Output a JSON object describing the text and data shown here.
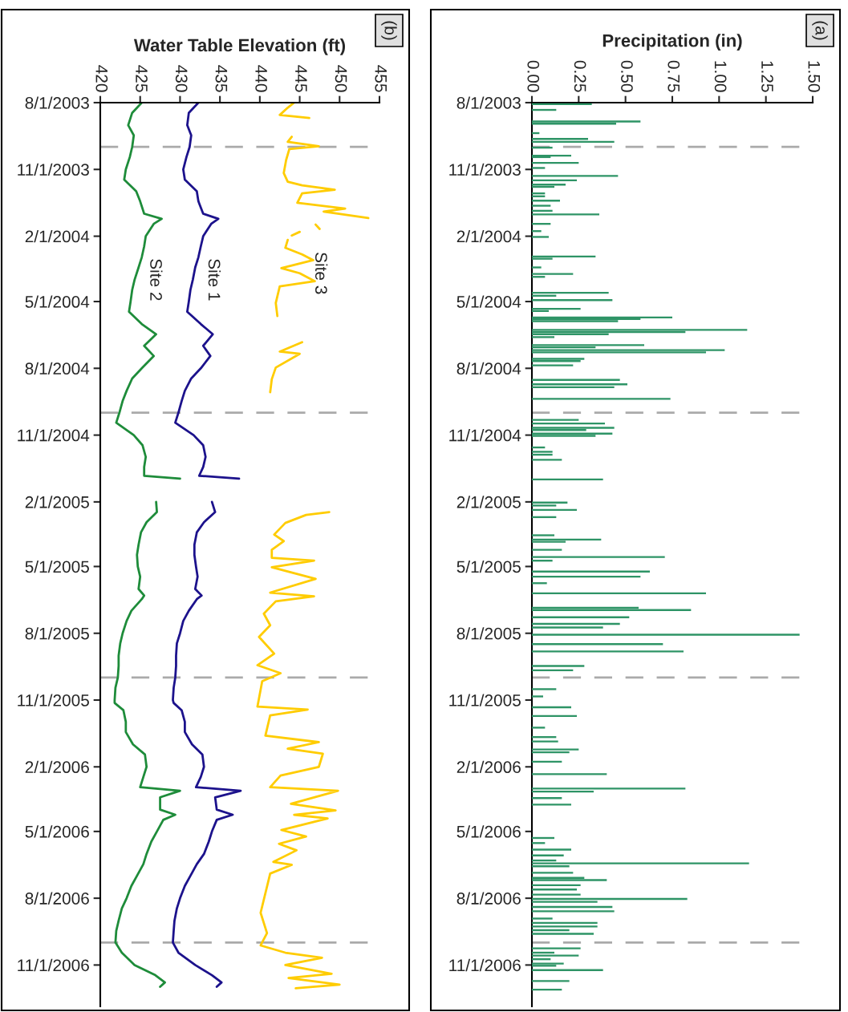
{
  "chart_data": [
    {
      "type": "line",
      "orientation": "horizontal",
      "xlabel": "Water Table Elevation (ft)",
      "annotations": [
        "(b)"
      ],
      "xlim": [
        420,
        455
      ],
      "xticks": [
        420,
        425,
        430,
        435,
        440,
        445,
        450,
        455
      ],
      "ylim": [
        "2006-12-28",
        "2003-08-01"
      ],
      "yticks": [
        {
          "value": "2003-08-01",
          "label": "8/1/2003"
        },
        {
          "value": "2003-11-01",
          "label": "11/1/2003"
        },
        {
          "value": "2004-02-01",
          "label": "2/1/2004"
        },
        {
          "value": "2004-05-01",
          "label": "5/1/2004"
        },
        {
          "value": "2004-08-01",
          "label": "8/1/2004"
        },
        {
          "value": "2004-11-01",
          "label": "11/1/2004"
        },
        {
          "value": "2005-02-01",
          "label": "2/1/2005"
        },
        {
          "value": "2005-05-01",
          "label": "5/1/2005"
        },
        {
          "value": "2005-08-01",
          "label": "8/1/2005"
        },
        {
          "value": "2005-11-01",
          "label": "11/1/2005"
        },
        {
          "value": "2006-02-01",
          "label": "2/1/2006"
        },
        {
          "value": "2006-05-01",
          "label": "5/1/2006"
        },
        {
          "value": "2006-08-01",
          "label": "8/1/2006"
        },
        {
          "value": "2006-11-01",
          "label": "11/1/2006"
        }
      ],
      "ref_lines": [
        {
          "axis": "y",
          "value": "2003-10-01",
          "color": "#aaaaaa",
          "line_style": "dashed"
        },
        {
          "axis": "y",
          "value": "2004-10-01",
          "color": "#aaaaaa",
          "line_style": "dashed"
        },
        {
          "axis": "y",
          "value": "2005-10-01",
          "color": "#aaaaaa",
          "line_style": "dashed"
        },
        {
          "axis": "y",
          "value": "2006-10-01",
          "color": "#aaaaaa",
          "line_style": "dashed"
        }
      ],
      "grid": false,
      "legend": false,
      "line_style": "solid",
      "series": [
        {
          "name": "Site 2",
          "color": "#1e8c3a",
          "x": [
            "2003-08-01",
            "2003-08-15",
            "2003-09-01",
            "2003-09-15",
            "2003-10-01",
            "2003-10-15",
            "2003-11-01",
            "2003-11-15",
            "2003-12-01",
            "2003-12-15",
            "2004-01-01",
            "2004-01-08",
            "2004-01-15",
            "2004-02-01",
            "2004-02-15",
            "2004-03-01",
            "2004-03-15",
            "2004-04-01",
            "2004-04-15",
            "2004-05-01",
            "2004-05-15",
            "2004-06-01",
            "2004-06-15",
            "2004-07-01",
            "2004-07-15",
            "2004-08-01",
            "2004-08-15",
            "2004-09-01",
            "2004-09-15",
            "2004-10-01",
            "2004-10-15",
            "2004-11-01",
            "2004-11-15",
            "2004-12-01",
            "2004-12-15",
            "2004-12-27",
            "2004-12-31",
            "2005-01-15",
            "2005-02-01",
            "2005-02-15",
            "2005-03-01",
            "2005-03-15",
            "2005-04-01",
            "2005-04-15",
            "2005-05-01",
            "2005-05-15",
            "2005-06-01",
            "2005-06-10",
            "2005-06-15",
            "2005-07-01",
            "2005-07-15",
            "2005-08-01",
            "2005-08-15",
            "2005-09-01",
            "2005-09-15",
            "2005-10-01",
            "2005-10-15",
            "2005-11-01",
            "2005-11-05",
            "2005-11-15",
            "2005-12-01",
            "2005-12-15",
            "2006-01-01",
            "2006-01-15",
            "2006-02-01",
            "2006-02-15",
            "2006-03-01",
            "2006-03-06",
            "2006-03-15",
            "2006-04-01",
            "2006-04-08",
            "2006-04-15",
            "2006-05-01",
            "2006-05-15",
            "2006-06-01",
            "2006-06-15",
            "2006-07-01",
            "2006-07-15",
            "2006-08-01",
            "2006-08-15",
            "2006-09-01",
            "2006-09-15",
            "2006-10-01",
            "2006-10-15",
            "2006-11-01",
            "2006-11-15",
            "2006-11-25",
            "2006-12-01"
          ],
          "values": [
            425.2,
            424.0,
            423.5,
            424.2,
            424.0,
            423.7,
            423.2,
            423.0,
            424.5,
            425.0,
            425.5,
            427.7,
            426.7,
            425.7,
            425.5,
            425.2,
            424.8,
            424.3,
            424.0,
            423.8,
            423.6,
            425.2,
            427.0,
            425.5,
            426.7,
            425.2,
            424.0,
            423.3,
            422.8,
            422.4,
            422.0,
            424.2,
            425.3,
            425.7,
            425.5,
            425.5,
            430.0,
            null,
            427.0,
            427.1,
            425.8,
            425.1,
            424.8,
            424.6,
            424.7,
            425.0,
            424.8,
            425.5,
            425.2,
            423.9,
            423.3,
            422.8,
            422.5,
            422.3,
            422.3,
            422.2,
            421.9,
            421.8,
            421.8,
            422.9,
            423.2,
            423.2,
            424.1,
            425.6,
            425.8,
            425.4,
            425.0,
            430.0,
            427.5,
            427.5,
            429.4,
            427.9,
            427.1,
            426.4,
            425.8,
            425.4,
            424.6,
            423.9,
            423.3,
            422.7,
            422.3,
            422.0,
            421.9,
            422.7,
            424.3,
            426.9,
            428.1,
            427.5
          ]
        },
        {
          "name": "Site 1",
          "color": "#1c128c",
          "x": [
            "2003-08-01",
            "2003-08-15",
            "2003-09-01",
            "2003-09-15",
            "2003-10-01",
            "2003-10-15",
            "2003-11-01",
            "2003-11-15",
            "2003-12-01",
            "2003-12-15",
            "2004-01-01",
            "2004-01-08",
            "2004-01-15",
            "2004-02-01",
            "2004-02-15",
            "2004-03-01",
            "2004-03-15",
            "2004-04-01",
            "2004-04-15",
            "2004-05-01",
            "2004-05-15",
            "2004-06-01",
            "2004-06-15",
            "2004-07-01",
            "2004-07-15",
            "2004-08-01",
            "2004-08-15",
            "2004-09-01",
            "2004-09-15",
            "2004-10-01",
            "2004-10-15",
            "2004-11-01",
            "2004-11-15",
            "2004-12-01",
            "2004-12-15",
            "2004-12-27",
            "2004-12-31",
            "2005-01-15",
            "2005-02-01",
            "2005-02-15",
            "2005-03-01",
            "2005-03-15",
            "2005-04-01",
            "2005-04-15",
            "2005-05-01",
            "2005-05-15",
            "2005-06-01",
            "2005-06-10",
            "2005-06-15",
            "2005-07-01",
            "2005-07-15",
            "2005-08-01",
            "2005-08-15",
            "2005-09-01",
            "2005-09-15",
            "2005-10-01",
            "2005-10-15",
            "2005-11-01",
            "2005-11-05",
            "2005-11-15",
            "2005-12-01",
            "2005-12-15",
            "2006-01-01",
            "2006-01-15",
            "2006-02-01",
            "2006-02-15",
            "2006-03-01",
            "2006-03-06",
            "2006-03-15",
            "2006-04-01",
            "2006-04-08",
            "2006-04-15",
            "2006-05-01",
            "2006-05-15",
            "2006-06-01",
            "2006-06-15",
            "2006-07-01",
            "2006-07-15",
            "2006-08-01",
            "2006-08-15",
            "2006-09-01",
            "2006-09-15",
            "2006-10-01",
            "2006-10-15",
            "2006-11-01",
            "2006-11-15",
            "2006-11-25",
            "2006-12-01"
          ],
          "values": [
            432.3,
            431.1,
            430.9,
            431.4,
            431.2,
            430.8,
            430.4,
            430.6,
            432.1,
            432.3,
            432.9,
            434.8,
            433.9,
            432.9,
            432.6,
            432.3,
            431.9,
            431.6,
            431.3,
            431.1,
            430.9,
            432.6,
            434.1,
            432.9,
            433.8,
            432.6,
            431.4,
            430.6,
            430.2,
            429.8,
            429.4,
            431.7,
            432.9,
            433.2,
            432.9,
            432.4,
            437.4,
            null,
            434.0,
            434.4,
            433.0,
            432.1,
            431.8,
            431.8,
            432.0,
            432.2,
            431.9,
            432.7,
            432.1,
            431.1,
            430.4,
            430.0,
            429.6,
            429.5,
            429.5,
            429.4,
            429.2,
            429.1,
            429.2,
            430.2,
            430.6,
            430.6,
            431.5,
            432.8,
            433.0,
            432.6,
            432.0,
            437.6,
            434.4,
            434.6,
            436.6,
            434.6,
            434.0,
            433.6,
            433.0,
            432.1,
            431.3,
            430.6,
            430.0,
            429.6,
            429.3,
            429.2,
            429.1,
            429.8,
            431.9,
            434.0,
            435.2,
            434.6
          ]
        },
        {
          "name": "Site 3",
          "color": "#ffcc00",
          "x": [
            "2003-08-01",
            "2003-08-08",
            "2003-08-18",
            "2003-08-22",
            "2003-09-01",
            "2003-09-17",
            "2003-09-24",
            "2003-09-30",
            "2003-10-04",
            "2003-10-19",
            "2003-11-06",
            "2003-11-18",
            "2003-11-23",
            "2003-11-29",
            "2003-12-04",
            "2003-12-17",
            "2003-12-25",
            "2003-12-29",
            "2004-01-07",
            "2004-01-12",
            "2004-01-16",
            "2004-01-22",
            "2004-01-24",
            "2004-01-26",
            "2004-01-31",
            "2004-02-03",
            "2004-02-06",
            "2004-02-17",
            "2004-02-26",
            "2004-03-05",
            "2004-03-16",
            "2004-03-23",
            "2004-04-03",
            "2004-04-10",
            "2004-05-03",
            "2004-05-21",
            "2004-06-08",
            "2004-06-26",
            "2004-07-09",
            "2004-07-12",
            "2004-07-31",
            "2004-08-16",
            "2004-09-03",
            "2004-12-01",
            "2005-02-15",
            "2005-02-19",
            "2005-03-02",
            "2005-03-18",
            "2005-03-27",
            "2005-04-08",
            "2005-04-19",
            "2005-04-23",
            "2005-05-02",
            "2005-05-18",
            "2005-06-06",
            "2005-06-11",
            "2005-06-18",
            "2005-07-05",
            "2005-07-21",
            "2005-08-06",
            "2005-08-29",
            "2005-09-14",
            "2005-09-25",
            "2005-10-06",
            "2005-11-10",
            "2005-11-14",
            "2005-11-22",
            "2005-12-20",
            "2005-12-29",
            "2006-01-07",
            "2006-01-14",
            "2006-02-01",
            "2006-02-13",
            "2006-03-01",
            "2006-03-06",
            "2006-03-24",
            "2006-04-02",
            "2006-04-08",
            "2006-04-13",
            "2006-04-29",
            "2006-05-08",
            "2006-05-18",
            "2006-05-27",
            "2006-06-12",
            "2006-06-16",
            "2006-06-28",
            "2006-08-21",
            "2006-09-18",
            "2006-10-05",
            "2006-10-15",
            "2006-10-22",
            "2006-11-01",
            "2006-11-13",
            "2006-11-19",
            "2006-11-28",
            "2006-12-03"
          ],
          "values": [
            444.3,
            443.5,
            442.5,
            446.2,
            null,
            444.0,
            443.5,
            447.4,
            443.7,
            443.3,
            443.0,
            443.5,
            445.3,
            449.4,
            445.3,
            444.7,
            450.7,
            448.0,
            453.6,
            null,
            447.0,
            447.5,
            null,
            445.0,
            444.0,
            null,
            443.5,
            443.2,
            445.3,
            446.7,
            442.7,
            445.0,
            446.9,
            442.5,
            442.0,
            442.2,
            null,
            445.3,
            442.5,
            445.0,
            442.0,
            441.5,
            441.3,
            null,
            448.7,
            445.8,
            443.2,
            441.8,
            443.0,
            441.5,
            441.5,
            446.8,
            441.5,
            447.0,
            441.3,
            446.8,
            442.0,
            440.5,
            441.3,
            439.9,
            441.8,
            439.7,
            442.6,
            440.3,
            439.7,
            446.0,
            441.3,
            440.7,
            447.4,
            443.5,
            447.9,
            447.4,
            442.6,
            441.3,
            449.8,
            443.9,
            449.5,
            444.3,
            448.5,
            442.7,
            445.8,
            442.4,
            444.6,
            441.7,
            444.0,
            441.3,
            440.1,
            440.9,
            440.1,
            443.2,
            447.8,
            443.2,
            449.0,
            443.6,
            450.0,
            444.5
          ]
        }
      ]
    },
    {
      "type": "bar",
      "orientation": "horizontal",
      "xlabel": "Precipitation (in)",
      "annotations": [
        "(a)"
      ],
      "xlim": [
        0,
        1.5
      ],
      "xticks": [
        {
          "value": 0,
          "label": "0.00"
        },
        {
          "value": 0.25,
          "label": "0.25"
        },
        {
          "value": 0.5,
          "label": "0.50"
        },
        {
          "value": 0.75,
          "label": "0.75"
        },
        {
          "value": 1.0,
          "label": "1.00"
        },
        {
          "value": 1.25,
          "label": "1.25"
        },
        {
          "value": 1.5,
          "label": "1.50"
        }
      ],
      "ylim": [
        "2006-12-28",
        "2003-08-01"
      ],
      "yticks": [
        {
          "value": "2003-08-01",
          "label": "8/1/2003"
        },
        {
          "value": "2003-11-01",
          "label": "11/1/2003"
        },
        {
          "value": "2004-02-01",
          "label": "2/1/2004"
        },
        {
          "value": "2004-05-01",
          "label": "5/1/2004"
        },
        {
          "value": "2004-08-01",
          "label": "8/1/2004"
        },
        {
          "value": "2004-11-01",
          "label": "11/1/2004"
        },
        {
          "value": "2005-02-01",
          "label": "2/1/2005"
        },
        {
          "value": "2005-05-01",
          "label": "5/1/2005"
        },
        {
          "value": "2005-08-01",
          "label": "8/1/2005"
        },
        {
          "value": "2005-11-01",
          "label": "11/1/2005"
        },
        {
          "value": "2006-02-01",
          "label": "2/1/2006"
        },
        {
          "value": "2006-05-01",
          "label": "5/1/2006"
        },
        {
          "value": "2006-08-01",
          "label": "8/1/2006"
        },
        {
          "value": "2006-11-01",
          "label": "11/1/2006"
        }
      ],
      "ref_lines": [
        {
          "axis": "y",
          "value": "2003-10-01",
          "color": "#aaaaaa",
          "line_style": "dashed"
        },
        {
          "axis": "y",
          "value": "2004-10-01",
          "color": "#aaaaaa",
          "line_style": "dashed"
        },
        {
          "axis": "y",
          "value": "2005-10-01",
          "color": "#aaaaaa",
          "line_style": "dashed"
        },
        {
          "axis": "y",
          "value": "2006-10-01",
          "color": "#aaaaaa",
          "line_style": "dashed"
        }
      ],
      "grid": false,
      "legend": false,
      "series": [
        {
          "color": "#2e9466",
          "x": [
            "2003-08-03",
            "2003-08-11",
            "2003-08-27",
            "2003-08-30",
            "2003-09-12",
            "2003-09-20",
            "2003-09-24",
            "2003-10-02",
            "2003-10-13",
            "2003-10-15",
            "2003-10-23",
            "2003-10-30",
            "2003-11-10",
            "2003-11-16",
            "2003-11-22",
            "2003-11-25",
            "2003-12-04",
            "2003-12-08",
            "2003-12-14",
            "2003-12-21",
            "2003-12-28",
            "2004-01-02",
            "2004-01-15",
            "2004-01-25",
            "2004-02-02",
            "2004-02-29",
            "2004-03-03",
            "2004-03-15",
            "2004-03-24",
            "2004-03-28",
            "2004-04-19",
            "2004-04-23",
            "2004-04-29",
            "2004-05-11",
            "2004-05-14",
            "2004-05-23",
            "2004-05-25",
            "2004-05-28",
            "2004-06-09",
            "2004-06-12",
            "2004-06-15",
            "2004-06-19",
            "2004-06-30",
            "2004-07-03",
            "2004-07-07",
            "2004-07-10",
            "2004-07-19",
            "2004-07-22",
            "2004-07-28",
            "2004-08-17",
            "2004-08-23",
            "2004-08-27",
            "2004-09-12",
            "2004-10-11",
            "2004-10-16",
            "2004-10-22",
            "2004-10-25",
            "2004-10-30",
            "2004-11-02",
            "2004-11-18",
            "2004-11-24",
            "2004-11-28",
            "2004-12-05",
            "2005-01-01",
            "2005-02-02",
            "2005-02-06",
            "2005-02-12",
            "2005-02-22",
            "2005-03-19",
            "2005-03-25",
            "2005-03-28",
            "2005-04-08",
            "2005-04-18",
            "2005-04-23",
            "2005-05-08",
            "2005-05-15",
            "2005-05-24",
            "2005-06-07",
            "2005-06-27",
            "2005-06-30",
            "2005-07-10",
            "2005-07-19",
            "2005-07-24",
            "2005-08-03",
            "2005-08-16",
            "2005-08-26",
            "2005-09-15",
            "2005-09-21",
            "2005-10-17",
            "2005-10-27",
            "2005-11-11",
            "2005-11-23",
            "2005-12-09",
            "2005-12-22",
            "2005-12-28",
            "2006-01-08",
            "2006-01-12",
            "2006-01-25",
            "2006-02-11",
            "2006-03-03",
            "2006-03-07",
            "2006-03-16",
            "2006-03-25",
            "2006-05-10",
            "2006-05-17",
            "2006-05-26",
            "2006-06-03",
            "2006-06-10",
            "2006-06-14",
            "2006-06-18",
            "2006-06-27",
            "2006-07-04",
            "2006-07-07",
            "2006-07-14",
            "2006-07-20",
            "2006-07-27",
            "2006-08-02",
            "2006-08-06",
            "2006-08-13",
            "2006-08-19",
            "2006-08-29",
            "2006-09-04",
            "2006-09-09",
            "2006-09-14",
            "2006-09-19",
            "2006-10-09",
            "2006-10-15",
            "2006-10-19",
            "2006-10-24",
            "2006-10-30",
            "2006-11-02",
            "2006-11-08",
            "2006-11-23",
            "2006-12-05"
          ],
          "values": [
            0.32,
            0.13,
            0.58,
            0.45,
            0.04,
            0.3,
            0.44,
            0.11,
            0.21,
            0.1,
            0.25,
            0.07,
            0.46,
            0.24,
            0.18,
            0.12,
            0.07,
            0.07,
            0.15,
            0.1,
            0.11,
            0.36,
            0.1,
            0.05,
            0.09,
            0.34,
            0.11,
            0.05,
            0.22,
            0.07,
            0.41,
            0.13,
            0.43,
            0.26,
            0.09,
            0.75,
            0.58,
            0.46,
            1.15,
            0.82,
            0.41,
            0.12,
            0.6,
            0.34,
            1.03,
            0.93,
            0.28,
            0.26,
            0.22,
            0.47,
            0.51,
            0.44,
            0.74,
            0.25,
            0.39,
            0.44,
            0.29,
            0.43,
            0.34,
            0.07,
            0.11,
            0.11,
            0.16,
            0.38,
            0.19,
            0.13,
            0.24,
            0.13,
            0.12,
            0.37,
            0.18,
            0.16,
            0.71,
            0.11,
            0.63,
            0.58,
            0.08,
            0.93,
            0.57,
            0.85,
            0.52,
            0.47,
            0.38,
            1.43,
            0.7,
            0.81,
            0.28,
            0.22,
            0.13,
            0.06,
            0.21,
            0.24,
            0.07,
            0.13,
            0.14,
            0.25,
            0.2,
            0.16,
            0.4,
            0.82,
            0.33,
            0.16,
            0.21,
            0.12,
            0.07,
            0.21,
            0.17,
            0.13,
            1.16,
            0.2,
            0.22,
            0.28,
            0.4,
            0.26,
            0.24,
            0.26,
            0.83,
            0.35,
            0.43,
            0.44,
            0.11,
            0.35,
            0.35,
            0.2,
            0.33,
            0.26,
            0.12,
            0.25,
            0.1,
            0.17,
            0.13,
            0.38,
            0.2,
            0.16
          ]
        }
      ]
    }
  ]
}
